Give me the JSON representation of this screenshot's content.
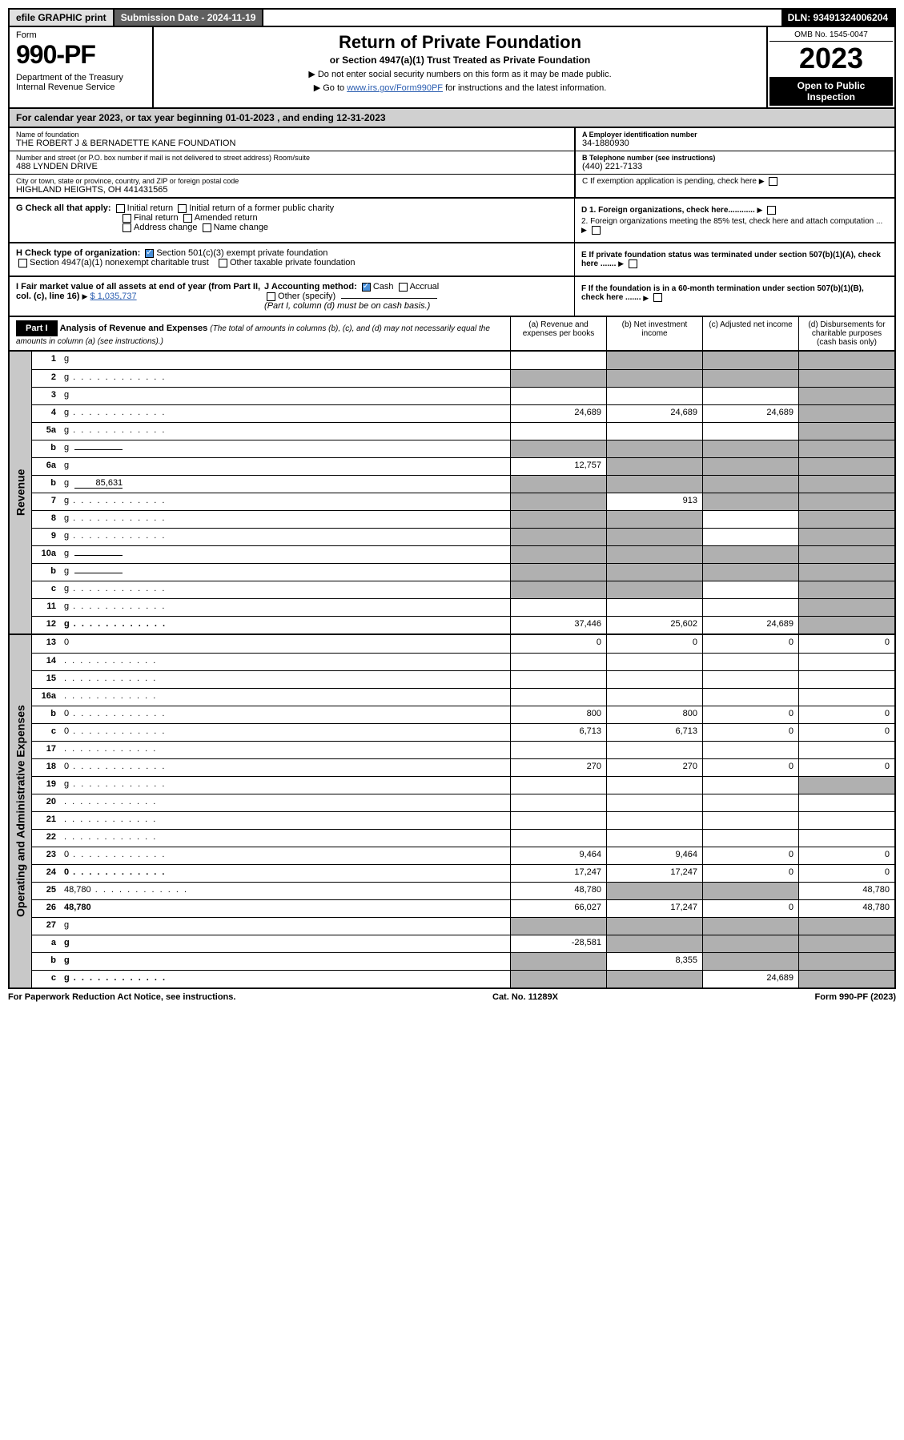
{
  "top": {
    "efile": "efile GRAPHIC print",
    "submission": "Submission Date - 2024-11-19",
    "dln": "DLN: 93491324006204"
  },
  "header": {
    "form_label": "Form",
    "form_num": "990-PF",
    "dept": "Department of the Treasury\nInternal Revenue Service",
    "title": "Return of Private Foundation",
    "subtitle": "or Section 4947(a)(1) Trust Treated as Private Foundation",
    "note1": "▶ Do not enter social security numbers on this form as it may be made public.",
    "note2_pre": "▶ Go to ",
    "note2_link": "www.irs.gov/Form990PF",
    "note2_post": " for instructions and the latest information.",
    "omb": "OMB No. 1545-0047",
    "year": "2023",
    "inspect": "Open to Public Inspection"
  },
  "cal": "For calendar year 2023, or tax year beginning 01-01-2023               , and ending 12-31-2023",
  "id": {
    "name_lbl": "Name of foundation",
    "name": "THE ROBERT J & BERNADETTE KANE FOUNDATION",
    "addr_lbl": "Number and street (or P.O. box number if mail is not delivered to street address)        Room/suite",
    "addr": "488 LYNDEN DRIVE",
    "city_lbl": "City or town, state or province, country, and ZIP or foreign postal code",
    "city": "HIGHLAND HEIGHTS, OH  441431565",
    "a_lbl": "A Employer identification number",
    "a_val": "34-1880930",
    "b_lbl": "B Telephone number (see instructions)",
    "b_val": "(440) 221-7133",
    "c_lbl": "C If exemption application is pending, check here"
  },
  "checks": {
    "g": "G Check all that apply:",
    "g_opts": [
      "Initial return",
      "Initial return of a former public charity",
      "Final return",
      "Amended return",
      "Address change",
      "Name change"
    ],
    "h": "H Check type of organization:",
    "h1": "Section 501(c)(3) exempt private foundation",
    "h2": "Section 4947(a)(1) nonexempt charitable trust",
    "h3": "Other taxable private foundation",
    "i_lbl": "I Fair market value of all assets at end of year (from Part II, col. (c), line 16)",
    "i_val": "$  1,035,737",
    "j_lbl": "J Accounting method:",
    "j_cash": "Cash",
    "j_accrual": "Accrual",
    "j_other": "Other (specify)",
    "j_note": "(Part I, column (d) must be on cash basis.)",
    "d1": "D 1. Foreign organizations, check here............",
    "d2": "2. Foreign organizations meeting the 85% test, check here and attach computation ...",
    "e": "E  If private foundation status was terminated under section 507(b)(1)(A), check here .......",
    "f": "F  If the foundation is in a 60-month termination under section 507(b)(1)(B), check here ......."
  },
  "part1": {
    "label": "Part I",
    "title": "Analysis of Revenue and Expenses",
    "desc": "(The total of amounts in columns (b), (c), and (d) may not necessarily equal the amounts in column (a) (see instructions).)",
    "cols": {
      "a": "(a) Revenue and expenses per books",
      "b": "(b) Net investment income",
      "c": "(c) Adjusted net income",
      "d": "(d) Disbursements for charitable purposes (cash basis only)"
    }
  },
  "sections": {
    "revenue": "Revenue",
    "operating": "Operating and Administrative Expenses"
  },
  "rows": [
    {
      "n": "1",
      "d": "g",
      "a": "",
      "b": "g",
      "c": "g"
    },
    {
      "n": "2",
      "d": "g",
      "a": "g",
      "b": "g",
      "c": "g",
      "dots": true
    },
    {
      "n": "3",
      "d": "g",
      "a": "",
      "b": "",
      "c": ""
    },
    {
      "n": "4",
      "d": "g",
      "a": "24,689",
      "b": "24,689",
      "c": "24,689",
      "dots": true
    },
    {
      "n": "5a",
      "d": "g",
      "a": "",
      "b": "",
      "c": "",
      "dots": true
    },
    {
      "n": "b",
      "d": "g",
      "a": "g",
      "b": "g",
      "c": "g",
      "inline": ""
    },
    {
      "n": "6a",
      "d": "g",
      "a": "12,757",
      "b": "g",
      "c": "g"
    },
    {
      "n": "b",
      "d": "g",
      "a": "g",
      "b": "g",
      "c": "g",
      "inline": "85,631"
    },
    {
      "n": "7",
      "d": "g",
      "a": "g",
      "b": "913",
      "c": "g",
      "dots": true
    },
    {
      "n": "8",
      "d": "g",
      "a": "g",
      "b": "g",
      "c": "",
      "dots": true
    },
    {
      "n": "9",
      "d": "g",
      "a": "g",
      "b": "g",
      "c": "",
      "dots": true
    },
    {
      "n": "10a",
      "d": "g",
      "a": "g",
      "b": "g",
      "c": "g",
      "inline": ""
    },
    {
      "n": "b",
      "d": "g",
      "a": "g",
      "b": "g",
      "c": "g",
      "inline": "",
      "dots": true
    },
    {
      "n": "c",
      "d": "g",
      "a": "g",
      "b": "g",
      "c": "",
      "dots": true
    },
    {
      "n": "11",
      "d": "g",
      "a": "",
      "b": "",
      "c": "",
      "dots": true
    },
    {
      "n": "12",
      "d": "g",
      "a": "37,446",
      "b": "25,602",
      "c": "24,689",
      "bold": true,
      "dots": true
    }
  ],
  "exp_rows": [
    {
      "n": "13",
      "d": "0",
      "a": "0",
      "b": "0",
      "c": "0"
    },
    {
      "n": "14",
      "d": "",
      "a": "",
      "b": "",
      "c": "",
      "dots": true
    },
    {
      "n": "15",
      "d": "",
      "a": "",
      "b": "",
      "c": "",
      "dots": true
    },
    {
      "n": "16a",
      "d": "",
      "a": "",
      "b": "",
      "c": "",
      "dots": true
    },
    {
      "n": "b",
      "d": "0",
      "a": "800",
      "b": "800",
      "c": "0",
      "dots": true
    },
    {
      "n": "c",
      "d": "0",
      "a": "6,713",
      "b": "6,713",
      "c": "0",
      "dots": true
    },
    {
      "n": "17",
      "d": "",
      "a": "",
      "b": "",
      "c": "",
      "dots": true
    },
    {
      "n": "18",
      "d": "0",
      "a": "270",
      "b": "270",
      "c": "0",
      "dots": true
    },
    {
      "n": "19",
      "d": "g",
      "a": "",
      "b": "",
      "c": "",
      "dots": true
    },
    {
      "n": "20",
      "d": "",
      "a": "",
      "b": "",
      "c": "",
      "dots": true
    },
    {
      "n": "21",
      "d": "",
      "a": "",
      "b": "",
      "c": "",
      "dots": true
    },
    {
      "n": "22",
      "d": "",
      "a": "",
      "b": "",
      "c": "",
      "dots": true
    },
    {
      "n": "23",
      "d": "0",
      "a": "9,464",
      "b": "9,464",
      "c": "0",
      "dots": true
    },
    {
      "n": "24",
      "d": "0",
      "a": "17,247",
      "b": "17,247",
      "c": "0",
      "bold": true,
      "dots": true
    },
    {
      "n": "25",
      "d": "48,780",
      "a": "48,780",
      "b": "g",
      "c": "g",
      "dots": true
    },
    {
      "n": "26",
      "d": "48,780",
      "a": "66,027",
      "b": "17,247",
      "c": "0",
      "bold": true
    },
    {
      "n": "27",
      "d": "g",
      "a": "g",
      "b": "g",
      "c": "g"
    },
    {
      "n": "a",
      "d": "g",
      "a": "-28,581",
      "b": "g",
      "c": "g",
      "bold": true
    },
    {
      "n": "b",
      "d": "g",
      "a": "g",
      "b": "8,355",
      "c": "g",
      "bold": true
    },
    {
      "n": "c",
      "d": "g",
      "a": "g",
      "b": "g",
      "c": "24,689",
      "bold": true,
      "dots": true
    }
  ],
  "footer": {
    "left": "For Paperwork Reduction Act Notice, see instructions.",
    "mid": "Cat. No. 11289X",
    "right": "Form 990-PF (2023)"
  },
  "colors": {
    "header_grey": "#b0b0b0",
    "section_grey": "#c8c8c8",
    "link": "#2a5db0",
    "check_blue": "#4a90d9"
  }
}
